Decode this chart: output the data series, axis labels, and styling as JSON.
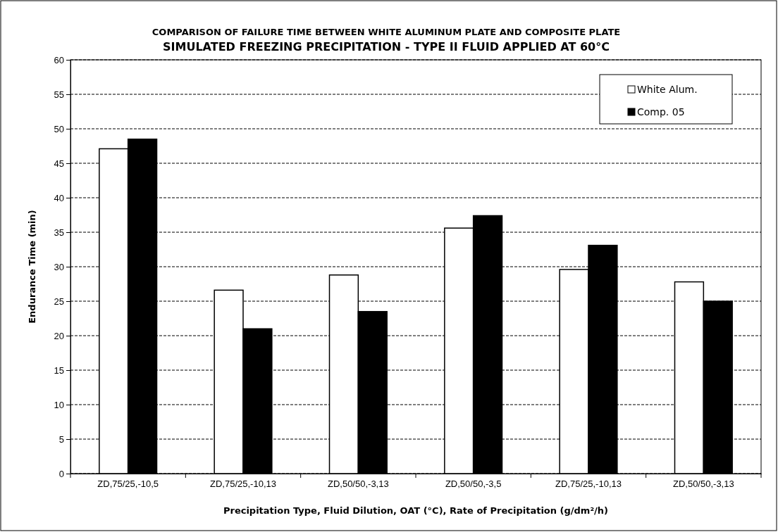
{
  "chart_data": {
    "type": "bar",
    "title": "COMPARISON OF FAILURE TIME BETWEEN WHITE ALUMINUM PLATE AND COMPOSITE PLATE",
    "subtitle": "SIMULATED FREEZING PRECIPITATION - TYPE II FLUID APPLIED AT 60°C",
    "xlabel": "Precipitation Type, Fluid Dilution, OAT (°C), Rate of Precipitation (g/dm²/h)",
    "ylabel": "Endurance Time (min)",
    "categories": [
      "ZD,75/25,-10,5",
      "ZD,75/25,-10,13",
      "ZD,50/50,-3,13",
      "ZD,50/50,-3,5",
      "ZD,75/25,-10,13",
      "ZD,50/50,-3,13"
    ],
    "series": [
      {
        "name": "White Alum.",
        "color": "#ffffff",
        "values": [
          47.1,
          26.6,
          28.8,
          35.6,
          29.6,
          27.8
        ]
      },
      {
        "name": "Comp. 05",
        "color": "#000000",
        "values": [
          48.5,
          21,
          23.5,
          37.4,
          33.1,
          25
        ]
      }
    ],
    "ylim": [
      0,
      60
    ],
    "yticks": [
      0,
      5,
      10,
      15,
      20,
      25,
      30,
      35,
      40,
      45,
      50,
      55,
      60
    ],
    "grid": "y",
    "legend": "top right"
  }
}
